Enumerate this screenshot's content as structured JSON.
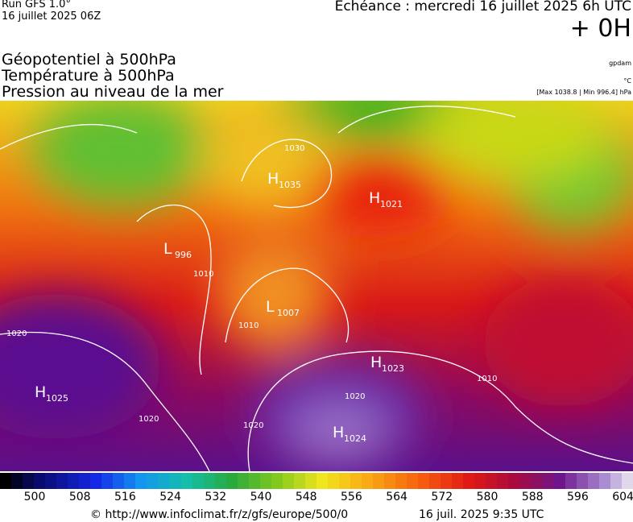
{
  "header": {
    "run": "Run GFS 1.0°",
    "run_date": "16 juillet 2025 06Z",
    "echeance": "Echéance : mercredi 16 juillet 2025 6h UTC",
    "offset": "+ 0H"
  },
  "titles": [
    "Géopotentiel à 500hPa",
    "Température à 500hPa",
    "Pression au niveau de la mer"
  ],
  "units": [
    "gpdam",
    "°C",
    "[Max 1038.8 | Min 996.4] hPa"
  ],
  "centers": [
    {
      "kind": "H",
      "value": "1035"
    },
    {
      "kind": "H",
      "value": "1021"
    },
    {
      "kind": "L",
      "value": "996"
    },
    {
      "kind": "L",
      "value": "1007"
    },
    {
      "kind": "H",
      "value": "1023"
    },
    {
      "kind": "H",
      "value": "1025"
    },
    {
      "kind": "H",
      "value": "1024"
    }
  ],
  "isobar_labels": [
    "1030",
    "1010",
    "1010",
    "1020",
    "1020",
    "1020",
    "1020",
    "1010"
  ],
  "colorbar_ticks": [
    "500",
    "508",
    "516",
    "524",
    "532",
    "540",
    "548",
    "556",
    "564",
    "572",
    "580",
    "588",
    "596",
    "604"
  ],
  "footer": {
    "source": "© http://www.infoclimat.fr/z/gfs/europe/500/0",
    "timestamp": "16 juil. 2025  9:35 UTC"
  }
}
